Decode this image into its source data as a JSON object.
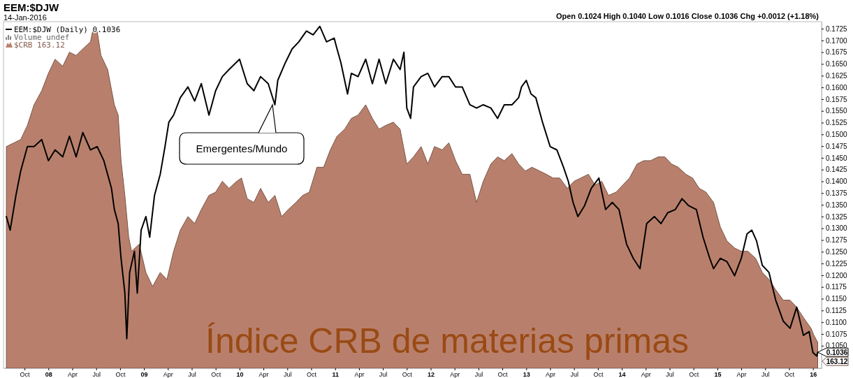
{
  "chart_data": {
    "type": "line",
    "title": "EEM:$DJW",
    "subtitle": "14-Jan-2016",
    "legend": "top left",
    "grid": false,
    "xlim": [
      2007.53,
      2016.09
    ],
    "ylim": [
      0.1002,
      0.174
    ],
    "xticks": [
      {
        "value": 2007.75,
        "label": "Oct"
      },
      {
        "value": 2008,
        "label": "08"
      },
      {
        "value": 2008.25,
        "label": "Apr"
      },
      {
        "value": 2008.5,
        "label": "Jul"
      },
      {
        "value": 2008.75,
        "label": "Oct"
      },
      {
        "value": 2009,
        "label": "09"
      },
      {
        "value": 2009.25,
        "label": "Apr"
      },
      {
        "value": 2009.5,
        "label": "Jul"
      },
      {
        "value": 2009.75,
        "label": "Oct"
      },
      {
        "value": 2010,
        "label": "10"
      },
      {
        "value": 2010.25,
        "label": "Apr"
      },
      {
        "value": 2010.5,
        "label": "Jul"
      },
      {
        "value": 2010.75,
        "label": "Oct"
      },
      {
        "value": 2011,
        "label": "11"
      },
      {
        "value": 2011.25,
        "label": "Apr"
      },
      {
        "value": 2011.5,
        "label": "Jul"
      },
      {
        "value": 2011.75,
        "label": "Oct"
      },
      {
        "value": 2012,
        "label": "12"
      },
      {
        "value": 2012.25,
        "label": "Apr"
      },
      {
        "value": 2012.5,
        "label": "Jul"
      },
      {
        "value": 2012.75,
        "label": "Oct"
      },
      {
        "value": 2013,
        "label": "13"
      },
      {
        "value": 2013.25,
        "label": "Apr"
      },
      {
        "value": 2013.5,
        "label": "Jul"
      },
      {
        "value": 2013.75,
        "label": "Oct"
      },
      {
        "value": 2014,
        "label": "14"
      },
      {
        "value": 2014.25,
        "label": "Apr"
      },
      {
        "value": 2014.5,
        "label": "Jul"
      },
      {
        "value": 2014.75,
        "label": "Oct"
      },
      {
        "value": 2015,
        "label": "15"
      },
      {
        "value": 2015.25,
        "label": "Apr"
      },
      {
        "value": 2015.5,
        "label": "Jul"
      },
      {
        "value": 2015.75,
        "label": "Oct"
      },
      {
        "value": 2016,
        "label": "16"
      }
    ],
    "yticks": [
      {
        "value": 0.105,
        "label": "0.1050"
      },
      {
        "value": 0.1075,
        "label": "0.1075"
      },
      {
        "value": 0.11,
        "label": "0.1100"
      },
      {
        "value": 0.1125,
        "label": "0.1125"
      },
      {
        "value": 0.115,
        "label": "0.1150"
      },
      {
        "value": 0.1175,
        "label": "0.1175"
      },
      {
        "value": 0.12,
        "label": "0.1200"
      },
      {
        "value": 0.1225,
        "label": "0.1225"
      },
      {
        "value": 0.125,
        "label": "0.1250"
      },
      {
        "value": 0.1275,
        "label": "0.1275"
      },
      {
        "value": 0.13,
        "label": "0.1300"
      },
      {
        "value": 0.1325,
        "label": "0.1325"
      },
      {
        "value": 0.135,
        "label": "0.1350"
      },
      {
        "value": 0.1375,
        "label": "0.1375"
      },
      {
        "value": 0.14,
        "label": "0.1400"
      },
      {
        "value": 0.1425,
        "label": "0.1425"
      },
      {
        "value": 0.145,
        "label": "0.1450"
      },
      {
        "value": 0.1475,
        "label": "0.1475"
      },
      {
        "value": 0.15,
        "label": "0.1500"
      },
      {
        "value": 0.1525,
        "label": "0.1525"
      },
      {
        "value": 0.155,
        "label": "0.1550"
      },
      {
        "value": 0.1575,
        "label": "0.1575"
      },
      {
        "value": 0.16,
        "label": "0.1600"
      },
      {
        "value": 0.1625,
        "label": "0.1625"
      },
      {
        "value": 0.165,
        "label": "0.1650"
      },
      {
        "value": 0.1675,
        "label": "0.1675"
      },
      {
        "value": 0.17,
        "label": "0.1700"
      },
      {
        "value": 0.1725,
        "label": "0.1725"
      }
    ],
    "series": [
      {
        "name": "EEM:$DJW (Daily) 0.1036",
        "color": "#000000",
        "x": [
          2007.56,
          2007.6,
          2007.66,
          2007.71,
          2007.78,
          2007.85,
          2007.93,
          2008,
          2008.07,
          2008.15,
          2008.22,
          2008.29,
          2008.36,
          2008.44,
          2008.51,
          2008.58,
          2008.66,
          2008.69,
          2008.73,
          2008.76,
          2008.8,
          2008.82,
          2008.85,
          2008.9,
          2008.93,
          2008.97,
          2009.02,
          2009.06,
          2009.11,
          2009.17,
          2009.22,
          2009.26,
          2009.31,
          2009.38,
          2009.46,
          2009.53,
          2009.6,
          2009.68,
          2009.75,
          2009.82,
          2009.89,
          2010,
          2010.08,
          2010.15,
          2010.22,
          2010.3,
          2010.37,
          2010.4,
          2010.48,
          2010.55,
          2010.62,
          2010.7,
          2010.77,
          2010.84,
          2010.91,
          2010.99,
          2011.02,
          2011.06,
          2011.13,
          2011.17,
          2011.24,
          2011.32,
          2011.39,
          2011.46,
          2011.53,
          2011.61,
          2011.68,
          2011.72,
          2011.75,
          2011.79,
          2011.82,
          2011.9,
          2011.97,
          2012.04,
          2012.12,
          2012.19,
          2012.26,
          2012.33,
          2012.41,
          2012.48,
          2012.55,
          2012.63,
          2012.7,
          2012.77,
          2012.85,
          2012.92,
          2012.95,
          2013,
          2013.05,
          2013.1,
          2013.17,
          2013.25,
          2013.32,
          2013.39,
          2013.44,
          2013.49,
          2013.54,
          2013.61,
          2013.68,
          2013.76,
          2013.83,
          2013.9,
          2013.97,
          2014.05,
          2014.12,
          2014.19,
          2014.26,
          2014.34,
          2014.41,
          2014.48,
          2014.56,
          2014.63,
          2014.7,
          2014.78,
          2014.85,
          2014.92,
          2014.96,
          2015.03,
          2015.1,
          2015.18,
          2015.25,
          2015.31,
          2015.36,
          2015.41,
          2015.47,
          2015.54,
          2015.61,
          2015.69,
          2015.76,
          2015.83,
          2015.9,
          2015.96,
          2016,
          2016.04,
          2016.05
        ],
        "values": [
          0.1325,
          0.1296,
          0.137,
          0.1422,
          0.1474,
          0.1474,
          0.1489,
          0.1444,
          0.1467,
          0.1452,
          0.1496,
          0.1452,
          0.1504,
          0.1467,
          0.1474,
          0.1444,
          0.1385,
          0.134,
          0.131,
          0.1236,
          0.1162,
          0.1065,
          0.1206,
          0.1251,
          0.1162,
          0.1296,
          0.1325,
          0.1281,
          0.137,
          0.1415,
          0.1474,
          0.1526,
          0.1541,
          0.1578,
          0.1601,
          0.1571,
          0.1608,
          0.1541,
          0.1593,
          0.1623,
          0.1638,
          0.166,
          0.1608,
          0.1593,
          0.1623,
          0.1608,
          0.1563,
          0.1615,
          0.1653,
          0.1682,
          0.1697,
          0.172,
          0.1712,
          0.173,
          0.1697,
          0.1705,
          0.1682,
          0.1653,
          0.1586,
          0.163,
          0.1623,
          0.166,
          0.1608,
          0.166,
          0.1608,
          0.166,
          0.1638,
          0.1675,
          0.1556,
          0.1534,
          0.1601,
          0.1623,
          0.163,
          0.1601,
          0.1623,
          0.1623,
          0.1601,
          0.1601,
          0.1563,
          0.1556,
          0.1563,
          0.1556,
          0.1534,
          0.1563,
          0.1563,
          0.1578,
          0.1601,
          0.1615,
          0.1586,
          0.1578,
          0.1526,
          0.1474,
          0.1467,
          0.143,
          0.14,
          0.1355,
          0.1325,
          0.1348,
          0.1385,
          0.1407,
          0.134,
          0.1355,
          0.134,
          0.1266,
          0.1236,
          0.1214,
          0.131,
          0.1325,
          0.131,
          0.1333,
          0.134,
          0.1363,
          0.1348,
          0.134,
          0.1281,
          0.1236,
          0.1214,
          0.1236,
          0.1229,
          0.1199,
          0.1236,
          0.1288,
          0.1296,
          0.1273,
          0.1221,
          0.1206,
          0.1147,
          0.1102,
          0.1087,
          0.1132,
          0.1072,
          0.108,
          0.1035,
          0.1028,
          0.1036
        ]
      },
      {
        "name": "$CRB 163.12",
        "type": "area",
        "color": "#b8806c",
        "x": [
          2007.56,
          2007.64,
          2007.71,
          2007.78,
          2007.85,
          2007.93,
          2008,
          2008.07,
          2008.15,
          2008.22,
          2008.29,
          2008.36,
          2008.44,
          2008.47,
          2008.51,
          2008.55,
          2008.62,
          2008.69,
          2008.73,
          2008.76,
          2008.8,
          2008.84,
          2008.87,
          2008.95,
          2009.02,
          2009.09,
          2009.17,
          2009.24,
          2009.31,
          2009.38,
          2009.46,
          2009.53,
          2009.6,
          2009.68,
          2009.75,
          2009.82,
          2009.89,
          2009.97,
          2010.02,
          2010.08,
          2010.15,
          2010.22,
          2010.3,
          2010.37,
          2010.44,
          2010.51,
          2010.59,
          2010.66,
          2010.73,
          2010.81,
          2010.88,
          2010.95,
          2011.02,
          2011.1,
          2011.17,
          2011.24,
          2011.32,
          2011.39,
          2011.46,
          2011.53,
          2011.61,
          2011.68,
          2011.75,
          2011.82,
          2011.9,
          2011.97,
          2012.04,
          2012.12,
          2012.19,
          2012.26,
          2012.33,
          2012.41,
          2012.48,
          2012.55,
          2012.63,
          2012.7,
          2012.77,
          2012.85,
          2012.92,
          2012.99,
          2013.06,
          2013.14,
          2013.21,
          2013.28,
          2013.35,
          2013.43,
          2013.5,
          2013.57,
          2013.65,
          2013.72,
          2013.79,
          2013.86,
          2013.94,
          2014.01,
          2014.08,
          2014.16,
          2014.23,
          2014.3,
          2014.38,
          2014.45,
          2014.52,
          2014.59,
          2014.67,
          2014.74,
          2014.81,
          2014.88,
          2014.96,
          2015.03,
          2015.1,
          2015.18,
          2015.25,
          2015.32,
          2015.4,
          2015.47,
          2015.54,
          2015.61,
          2015.69,
          2015.76,
          2015.83,
          2015.9,
          2015.98,
          2016.01,
          2016.05
        ],
        "values": [
          0.1474,
          0.1482,
          0.1489,
          0.1519,
          0.1563,
          0.1593,
          0.163,
          0.166,
          0.1645,
          0.1675,
          0.1668,
          0.1682,
          0.1697,
          0.1727,
          0.172,
          0.1668,
          0.1638,
          0.1563,
          0.1541,
          0.1444,
          0.137,
          0.1281,
          0.1251,
          0.1266,
          0.1206,
          0.1176,
          0.1206,
          0.1191,
          0.1251,
          0.1296,
          0.1325,
          0.131,
          0.134,
          0.137,
          0.1377,
          0.14,
          0.1385,
          0.14,
          0.1407,
          0.1363,
          0.1355,
          0.1385,
          0.1355,
          0.137,
          0.1325,
          0.134,
          0.1355,
          0.137,
          0.1377,
          0.143,
          0.143,
          0.1467,
          0.1496,
          0.1511,
          0.1534,
          0.1541,
          0.1563,
          0.1534,
          0.1511,
          0.1519,
          0.1526,
          0.1511,
          0.1437,
          0.1452,
          0.1474,
          0.1437,
          0.1474,
          0.1467,
          0.1482,
          0.1444,
          0.1415,
          0.1415,
          0.1355,
          0.14,
          0.1437,
          0.1452,
          0.1444,
          0.1459,
          0.1437,
          0.1422,
          0.143,
          0.1422,
          0.1415,
          0.1407,
          0.1407,
          0.1385,
          0.14,
          0.1407,
          0.1415,
          0.1392,
          0.14,
          0.137,
          0.1377,
          0.1392,
          0.1407,
          0.1437,
          0.1444,
          0.1444,
          0.1452,
          0.1452,
          0.1437,
          0.143,
          0.1415,
          0.1407,
          0.1385,
          0.1377,
          0.1355,
          0.1303,
          0.1273,
          0.1258,
          0.1251,
          0.1251,
          0.1236,
          0.1206,
          0.1191,
          0.1169,
          0.1147,
          0.1147,
          0.1132,
          0.111,
          0.1087,
          0.1072,
          0.1057
        ]
      }
    ],
    "annotations": [
      "Volume undef",
      "Open 0.1024  High 0.1040  Low 0.1016  Close 0.1036  Chg +0.0012 (+1.18%)",
      "Emergentes/Mundo",
      "Índice CRB de materias primas",
      {
        "text": "0.1036",
        "x": 2016.05,
        "y": 0.1036
      },
      "163.12"
    ]
  }
}
